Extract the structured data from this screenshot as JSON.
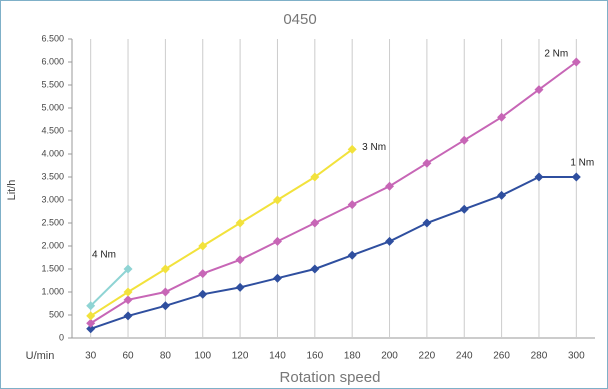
{
  "chart_data": {
    "type": "line",
    "title": "0450",
    "x_label": "Rotation speed",
    "x_unit_label": "U/min",
    "y_label": "Lit/h",
    "categories": [
      "30",
      "60",
      "80",
      "100",
      "120",
      "140",
      "160",
      "180",
      "200",
      "220",
      "240",
      "260",
      "280",
      "300"
    ],
    "ylim": [
      0,
      6500
    ],
    "yticks": [
      0,
      500,
      {
        "value": 1000,
        "label": "1.000"
      },
      {
        "value": 1500,
        "label": "1.500"
      },
      {
        "value": 2000,
        "label": "2.000"
      },
      {
        "value": 2500,
        "label": "2.500"
      },
      {
        "value": 3000,
        "label": "3.000"
      },
      {
        "value": 3500,
        "label": "3.500"
      },
      {
        "value": 4000,
        "label": "4.000"
      },
      {
        "value": 4500,
        "label": "4.500"
      },
      {
        "value": 5000,
        "label": "5.000"
      },
      {
        "value": 5500,
        "label": "5.500"
      },
      {
        "value": 6000,
        "label": "6.000"
      },
      {
        "value": 6500,
        "label": "6.500"
      }
    ],
    "series": [
      {
        "name": "1 Nm",
        "color": "#2f4f9f",
        "values": [
          200,
          480,
          700,
          950,
          1100,
          1300,
          1500,
          1800,
          2100,
          2500,
          2800,
          3100,
          3500,
          3500
        ]
      },
      {
        "name": "2 Nm",
        "color": "#c766b6",
        "values": [
          320,
          830,
          1000,
          1400,
          1700,
          2100,
          2500,
          2900,
          3300,
          3800,
          4300,
          4800,
          5400,
          6000
        ]
      },
      {
        "name": "3 Nm",
        "color": "#f2e23c",
        "values": [
          480,
          1000,
          1500,
          2000,
          2500,
          3000,
          3500,
          4100,
          null,
          null,
          null,
          null,
          null,
          null
        ]
      },
      {
        "name": "4 Nm",
        "color": "#8fd4d4",
        "values": [
          700,
          1500,
          null,
          null,
          null,
          null,
          null,
          null,
          null,
          null,
          null,
          null,
          null,
          null
        ]
      }
    ]
  }
}
